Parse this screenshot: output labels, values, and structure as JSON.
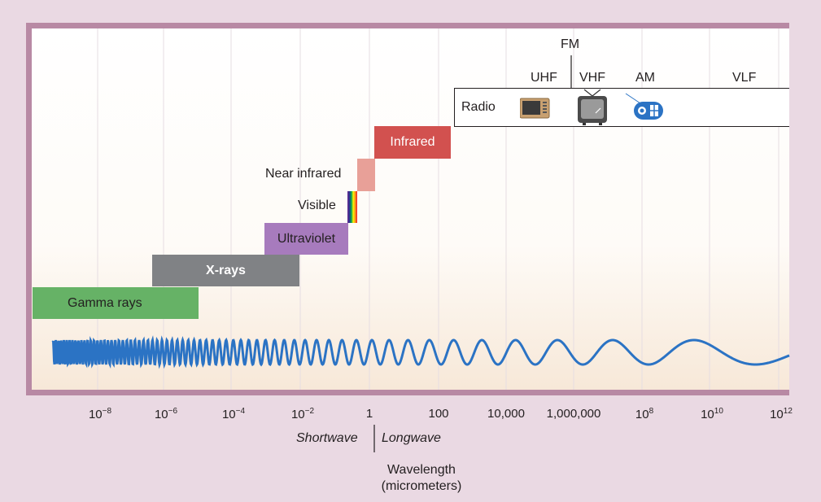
{
  "bands": {
    "gamma": "Gamma rays",
    "xrays": "X-rays",
    "ultraviolet": "Ultraviolet",
    "visible": "Visible",
    "near_infrared": "Near infrared",
    "infrared": "Infrared"
  },
  "radio": {
    "label": "Radio",
    "fm": "FM",
    "uhf": "UHF",
    "vhf": "VHF",
    "am": "AM",
    "vlf": "VLF",
    "icons": [
      "television-icon",
      "old-tv-icon",
      "radio-icon"
    ]
  },
  "axis": {
    "ticks": [
      {
        "base": "10",
        "exp": "−8"
      },
      {
        "base": "10",
        "exp": "−6"
      },
      {
        "base": "10",
        "exp": "−4"
      },
      {
        "base": "10",
        "exp": "−2"
      },
      {
        "base": "1",
        "exp": ""
      },
      {
        "base": "100",
        "exp": ""
      },
      {
        "base": "10,000",
        "exp": ""
      },
      {
        "base": "1,000,000",
        "exp": ""
      },
      {
        "base": "10",
        "exp": "8"
      },
      {
        "base": "10",
        "exp": "10"
      },
      {
        "base": "10",
        "exp": "12"
      }
    ],
    "shortwave": "Shortwave",
    "longwave": "Longwave",
    "title_line1": "Wavelength",
    "title_line2": "(micrometers)"
  },
  "colors": {
    "gamma": "#66b266",
    "xrays": "#808285",
    "ultraviolet": "#a77bbd",
    "near_infrared": "#e8a098",
    "infrared": "#d2514f",
    "wave": "#2b73c4",
    "frame": "#b889a4"
  }
}
